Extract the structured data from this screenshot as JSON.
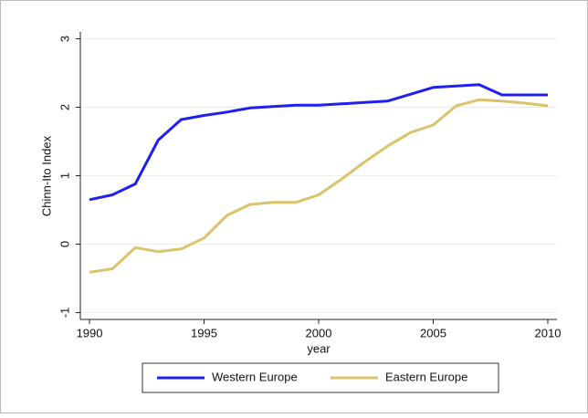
{
  "chart_data": {
    "type": "line",
    "y_label": "Chinn-Ito Index",
    "x_label": "year",
    "x": [
      1990,
      1991,
      1992,
      1993,
      1994,
      1995,
      1996,
      1997,
      1998,
      1999,
      2000,
      2001,
      2002,
      2003,
      2004,
      2005,
      2006,
      2007,
      2008,
      2009,
      2010
    ],
    "series": [
      {
        "name": "Western Europe",
        "color": "#1f1ff0",
        "values": [
          0.65,
          0.72,
          0.88,
          1.52,
          1.82,
          1.88,
          1.93,
          1.99,
          2.01,
          2.03,
          2.03,
          2.05,
          2.07,
          2.09,
          2.19,
          2.29,
          2.31,
          2.33,
          2.18,
          2.18,
          2.18
        ]
      },
      {
        "name": "Eastern Europe",
        "color": "#d9c46b",
        "values": [
          -0.41,
          -0.36,
          -0.05,
          -0.11,
          -0.07,
          0.09,
          0.42,
          0.58,
          0.61,
          0.61,
          0.72,
          0.95,
          1.2,
          1.43,
          1.63,
          1.74,
          2.02,
          2.11,
          2.09,
          2.06,
          2.02
        ]
      }
    ],
    "xlim": [
      1989.6,
      2010.4
    ],
    "ylim": [
      -1.1,
      3.1
    ],
    "xticks": [
      1990,
      1995,
      2000,
      2005,
      2010
    ],
    "yticks": [
      -1,
      0,
      1,
      2,
      3
    ],
    "grid": true,
    "legend": "bottom"
  }
}
